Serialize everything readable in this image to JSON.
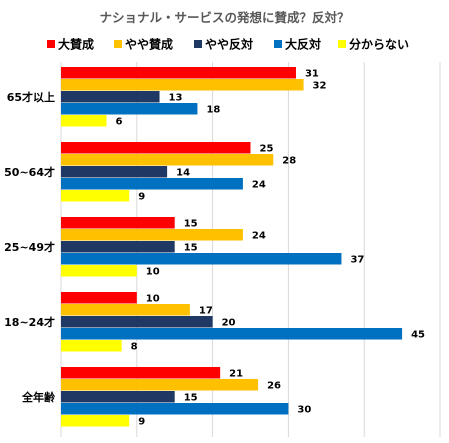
{
  "chart_data": {
    "type": "bar",
    "orientation": "horizontal",
    "title": "ナショナル・サービスの発想に賛成？反対？",
    "categories": [
      "65才以上",
      "50~64才",
      "25~49才",
      "18~24才",
      "全年齢"
    ],
    "series": [
      {
        "name": "大賛成",
        "color": "#ff0000",
        "values": [
          31,
          25,
          15,
          10,
          21
        ]
      },
      {
        "name": "やや賛成",
        "color": "#ffc000",
        "values": [
          32,
          28,
          24,
          17,
          26
        ]
      },
      {
        "name": "やや反対",
        "color": "#1f3864",
        "values": [
          13,
          14,
          15,
          20,
          15
        ]
      },
      {
        "name": "大反対",
        "color": "#0070c0",
        "values": [
          18,
          24,
          37,
          45,
          30
        ]
      },
      {
        "name": "分からない",
        "color": "#ffff00",
        "values": [
          6,
          9,
          10,
          8,
          9
        ]
      }
    ],
    "xlim": [
      0,
      50
    ],
    "grid": true,
    "legend_position": "top"
  }
}
